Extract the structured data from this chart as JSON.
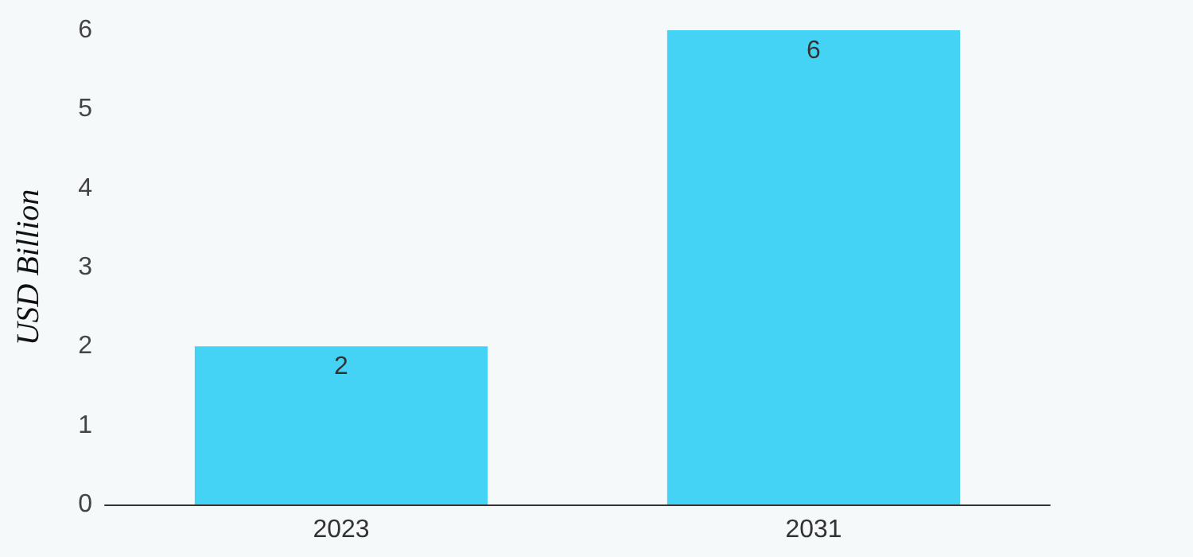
{
  "chart_data": {
    "type": "bar",
    "ylabel": "USD Billion",
    "categories": [
      "2023",
      "2031"
    ],
    "values": [
      2,
      6
    ],
    "color": "#44d3f5",
    "ylim": [
      0,
      6
    ],
    "yticks": [
      0,
      1,
      2,
      3,
      4,
      5,
      6
    ],
    "grid": false,
    "data_labels": true
  }
}
